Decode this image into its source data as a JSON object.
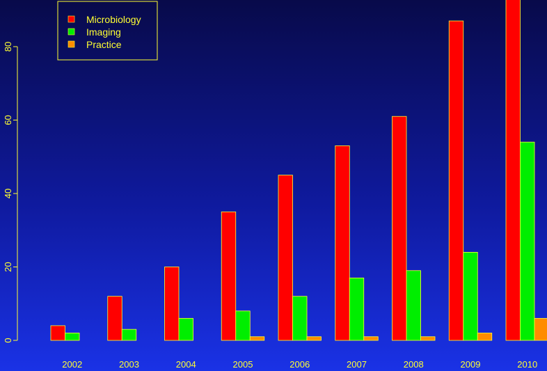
{
  "chart_data": {
    "type": "bar",
    "categories": [
      "2002",
      "2003",
      "2004",
      "2005",
      "2006",
      "2007",
      "2008",
      "2009",
      "2010"
    ],
    "series": [
      {
        "name": "Microbiology",
        "color": "#ff0000",
        "values": [
          4,
          12,
          20,
          35,
          45,
          53,
          61,
          87,
          94
        ]
      },
      {
        "name": "Imaging",
        "color": "#00ee00",
        "values": [
          2,
          3,
          6,
          8,
          12,
          17,
          19,
          24,
          54
        ]
      },
      {
        "name": "Practice",
        "color": "#ff8c00",
        "values": [
          0,
          0,
          0,
          1,
          1,
          1,
          1,
          2,
          6
        ]
      }
    ],
    "y_ticks": [
      "0",
      "20",
      "40",
      "60",
      "80"
    ],
    "ylim": [
      0,
      90
    ],
    "legend_position": "top-left",
    "text_color": "#ffff33",
    "bar_border_color": "#ffff33",
    "grid": false
  }
}
